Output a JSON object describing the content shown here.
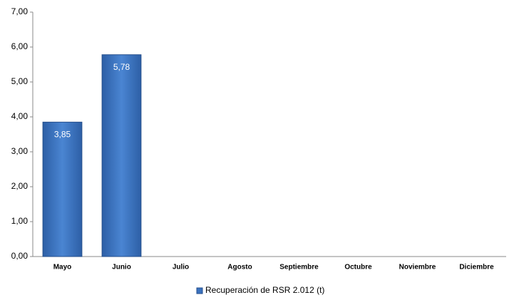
{
  "chart_data": {
    "type": "bar",
    "categories": [
      "Mayo",
      "Junio",
      "Julio",
      "Agosto",
      "Septiembre",
      "Octubre",
      "Noviembre",
      "Diciembre"
    ],
    "series": [
      {
        "name": "Recuperación de RSR 2.012 (t)",
        "color": "#3a72bf",
        "values": [
          3.85,
          5.78,
          null,
          null,
          null,
          null,
          null,
          null
        ],
        "value_labels": [
          "3,85",
          "5,78",
          null,
          null,
          null,
          null,
          null,
          null
        ]
      }
    ],
    "ylim": [
      0,
      7
    ],
    "yticks": [
      {
        "value": 0,
        "label": "0,00"
      },
      {
        "value": 1,
        "label": "1,00"
      },
      {
        "value": 2,
        "label": "2,00"
      },
      {
        "value": 3,
        "label": "3,00"
      },
      {
        "value": 4,
        "label": "4,00"
      },
      {
        "value": 5,
        "label": "5,00"
      },
      {
        "value": 6,
        "label": "6,00"
      },
      {
        "value": 7,
        "label": "7,00"
      }
    ],
    "grid": false,
    "legend": "bottom"
  }
}
